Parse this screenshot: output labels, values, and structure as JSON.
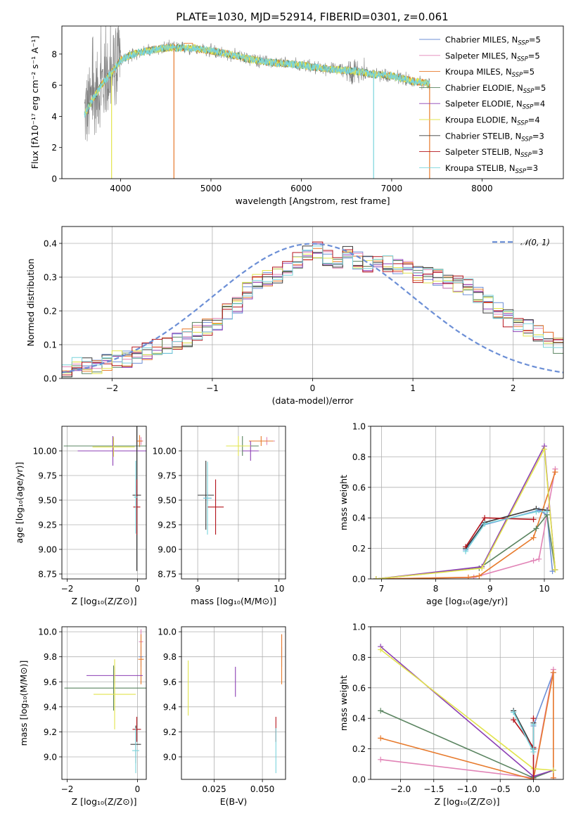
{
  "figure": {
    "title": "PLATE=1030, MJD=52914, FIBERID=0301, z=0.061"
  },
  "colors": {
    "Chabrier MILES": "#6c8fd6",
    "Salpeter MILES": "#e183b6",
    "Kroupa MILES": "#e77a2c",
    "Chabrier ELODIE": "#5a8460",
    "Salpeter ELODIE": "#8c3fb4",
    "Kroupa ELODIE": "#e2e44c",
    "Chabrier STELIB": "#3a3a3a",
    "Salpeter STELIB": "#b4151c",
    "Kroupa STELIB": "#79d4dc",
    "data": "#808080"
  },
  "chart_data": [
    {
      "id": "spectrum",
      "type": "line",
      "title": "PLATE=1030, MJD=52914, FIBERID=0301, z=0.061",
      "xlabel": "wavelength [Angstrom, rest frame]",
      "ylabel": "Flux [fλ10⁻¹⁷ erg cm⁻² s⁻¹ A⁻¹]",
      "xlim": [
        3350,
        8900
      ],
      "ylim": [
        0,
        9.8
      ],
      "xticks": [
        4000,
        5000,
        6000,
        7000,
        8000
      ],
      "yticks": [
        0,
        2,
        4,
        6,
        8
      ],
      "grid": false,
      "legend_position": "upper right",
      "data_trend": {
        "x": [
          3600,
          3700,
          3800,
          3900,
          4000,
          4100,
          4200,
          4300,
          4400,
          4500,
          4600,
          4700,
          4800,
          4900,
          5000,
          5200,
          5400,
          5600,
          5800,
          6000,
          6200,
          6400,
          6600,
          6800,
          7000,
          7200,
          7400
        ],
        "y": [
          4.1,
          5.2,
          6.1,
          6.8,
          7.6,
          7.9,
          8.1,
          8.2,
          8.3,
          8.4,
          8.4,
          8.4,
          8.4,
          8.3,
          8.2,
          8.0,
          7.7,
          7.5,
          7.4,
          7.3,
          7.1,
          7.0,
          6.9,
          6.7,
          6.6,
          6.3,
          6.1
        ]
      },
      "series": [
        {
          "label": "Chabrier MILES, N",
          "sub": "SSP",
          "suffix": "=5"
        },
        {
          "label": "Salpeter MILES, N",
          "sub": "SSP",
          "suffix": "=5"
        },
        {
          "label": "Kroupa MILES, N",
          "sub": "SSP",
          "suffix": "=5"
        },
        {
          "label": "Chabrier ELODIE, N",
          "sub": "SSP",
          "suffix": "=5"
        },
        {
          "label": "Salpeter ELODIE, N",
          "sub": "SSP",
          "suffix": "=4"
        },
        {
          "label": "Kroupa ELODIE, N",
          "sub": "SSP",
          "suffix": "=4"
        },
        {
          "label": "Chabrier STELIB, N",
          "sub": "SSP",
          "suffix": "=3"
        },
        {
          "label": "Salpeter STELIB, N",
          "sub": "SSP",
          "suffix": "=3"
        },
        {
          "label": "Kroupa STELIB, N",
          "sub": "SSP",
          "suffix": "=3"
        }
      ]
    },
    {
      "id": "residuals",
      "type": "line",
      "xlabel": "(data-model)/error",
      "ylabel": "Normed distribution",
      "xlim": [
        -2.5,
        2.5
      ],
      "ylim": [
        0,
        0.45
      ],
      "xticks": [
        -2,
        -1,
        0,
        1,
        2
      ],
      "yticks": [
        0.0,
        0.1,
        0.2,
        0.3,
        0.4
      ],
      "grid": true,
      "legend_position": "upper right",
      "legend_label": "𝒩(0, 1)",
      "bin_width": 0.1,
      "bin_start": -2.5,
      "base_hist": [
        0.03,
        0.035,
        0.04,
        0.04,
        0.045,
        0.055,
        0.06,
        0.07,
        0.08,
        0.09,
        0.1,
        0.11,
        0.12,
        0.14,
        0.15,
        0.17,
        0.2,
        0.22,
        0.26,
        0.29,
        0.3,
        0.31,
        0.33,
        0.35,
        0.37,
        0.38,
        0.36,
        0.35,
        0.37,
        0.35,
        0.34,
        0.35,
        0.34,
        0.33,
        0.33,
        0.31,
        0.31,
        0.3,
        0.29,
        0.28,
        0.27,
        0.25,
        0.22,
        0.2,
        0.18,
        0.16,
        0.15,
        0.13,
        0.11,
        0.1
      ]
    },
    {
      "id": "age-vs-Z",
      "type": "scatter",
      "xlabel": "Z [log₁₀(Z/Z⊙)]",
      "ylabel": "age  [log₁₀(age/yr)]",
      "xlim": [
        -2.15,
        0.25
      ],
      "ylim": [
        8.7,
        10.25
      ],
      "xticks": [
        -2,
        0
      ],
      "yticks": [
        8.75,
        9.0,
        9.25,
        9.5,
        9.75,
        10.0
      ],
      "grid": true,
      "points": [
        {
          "model": "Chabrier MILES",
          "x": -0.02,
          "y": 9.55,
          "xerr": 0.05,
          "yerr": 0.1
        },
        {
          "model": "Salpeter MILES",
          "x": 0.1,
          "y": 10.1,
          "xerr": 0.06,
          "yerr": 0.04
        },
        {
          "model": "Kroupa MILES",
          "x": 0.06,
          "y": 10.1,
          "xerr": 0.08,
          "yerr": 0.06
        },
        {
          "model": "Chabrier ELODIE",
          "x": -0.7,
          "y": 10.05,
          "xerr": 1.4,
          "yerr": 0.1
        },
        {
          "model": "Salpeter ELODIE",
          "x": -0.7,
          "y": 10.0,
          "xerr": 1.0,
          "yerr": 0.15
        },
        {
          "model": "Kroupa ELODIE",
          "x": -0.68,
          "y": 10.04,
          "xerr": 0.6,
          "yerr": 0.1
        },
        {
          "model": "Chabrier STELIB",
          "x": -0.02,
          "y": 9.55,
          "xerr": 0.12,
          "yerr": 0.77
        },
        {
          "model": "Salpeter STELIB",
          "x": -0.02,
          "y": 9.43,
          "xerr": 0.1,
          "yerr": 0.28
        },
        {
          "model": "Kroupa STELIB",
          "x": -0.05,
          "y": 9.53,
          "xerr": 0.05,
          "yerr": 0.37
        }
      ]
    },
    {
      "id": "age-vs-mass",
      "type": "scatter",
      "xlabel": "mass [log₁₀(M/M⊙)]",
      "xlim": [
        8.8,
        10.08
      ],
      "ylim": [
        8.7,
        10.25
      ],
      "xticks": [
        9,
        9.5,
        10
      ],
      "xticklabels": [
        "9",
        "",
        "10"
      ],
      "yticks": [
        8.75,
        9.0,
        9.25,
        9.5,
        9.75,
        10.0
      ],
      "grid": true,
      "points": [
        {
          "model": "Chabrier MILES",
          "x": 9.12,
          "y": 9.52,
          "xerr": 0.05,
          "yerr": 0.06
        },
        {
          "model": "Salpeter MILES",
          "x": 9.85,
          "y": 10.1,
          "xerr": 0.1,
          "yerr": 0.04
        },
        {
          "model": "Kroupa MILES",
          "x": 9.78,
          "y": 10.1,
          "xerr": 0.15,
          "yerr": 0.05
        },
        {
          "model": "Chabrier ELODIE",
          "x": 9.55,
          "y": 10.05,
          "xerr": 0.2,
          "yerr": 0.1
        },
        {
          "model": "Salpeter ELODIE",
          "x": 9.65,
          "y": 10.0,
          "xerr": 0.1,
          "yerr": 0.1
        },
        {
          "model": "Kroupa ELODIE",
          "x": 9.5,
          "y": 10.05,
          "xerr": 0.15,
          "yerr": 0.1
        },
        {
          "model": "Chabrier STELIB",
          "x": 9.1,
          "y": 9.55,
          "xerr": 0.1,
          "yerr": 0.35
        },
        {
          "model": "Salpeter STELIB",
          "x": 9.22,
          "y": 9.43,
          "xerr": 0.1,
          "yerr": 0.28
        },
        {
          "model": "Kroupa STELIB",
          "x": 9.12,
          "y": 9.52,
          "xerr": 0.05,
          "yerr": 0.37
        }
      ]
    },
    {
      "id": "mass-weight-vs-age",
      "type": "line",
      "xlabel": "age  [log₁₀(age/yr)]",
      "ylabel": "mass weight",
      "xlim": [
        6.8,
        10.35
      ],
      "ylim": [
        0,
        1.0
      ],
      "xticks": [
        7,
        8,
        9,
        10
      ],
      "yticks": [
        0.0,
        0.2,
        0.4,
        0.6,
        0.8,
        1.0
      ],
      "grid": true,
      "series": [
        {
          "model": "Chabrier MILES",
          "x": [
            8.55,
            8.85,
            9.9,
            10.05,
            10.15
          ],
          "y": [
            0.19,
            0.35,
            0.45,
            0.42,
            0.05
          ]
        },
        {
          "model": "Salpeter MILES",
          "x": [
            6.9,
            8.7,
            9.8,
            9.9,
            10.2
          ],
          "y": [
            0.0,
            0.01,
            0.12,
            0.13,
            0.72
          ]
        },
        {
          "model": "Kroupa MILES",
          "x": [
            6.9,
            8.6,
            8.8,
            9.8,
            10.2
          ],
          "y": [
            0.0,
            0.01,
            0.02,
            0.27,
            0.7
          ]
        },
        {
          "model": "Chabrier ELODIE",
          "x": [
            6.9,
            8.8,
            9.85,
            10.05,
            10.2
          ],
          "y": [
            0.0,
            0.07,
            0.33,
            0.42,
            0.06
          ]
        },
        {
          "model": "Salpeter ELODIE",
          "x": [
            6.9,
            8.85,
            10.0,
            10.2
          ],
          "y": [
            0.0,
            0.08,
            0.87,
            0.06
          ]
        },
        {
          "model": "Kroupa ELODIE",
          "x": [
            6.9,
            8.85,
            10.0,
            10.2
          ],
          "y": [
            0.0,
            0.07,
            0.85,
            0.06
          ]
        },
        {
          "model": "Chabrier STELIB",
          "x": [
            8.55,
            8.9,
            9.85,
            10.05
          ],
          "y": [
            0.2,
            0.37,
            0.46,
            0.45
          ]
        },
        {
          "model": "Salpeter STELIB",
          "x": [
            8.55,
            8.9,
            9.8
          ],
          "y": [
            0.21,
            0.4,
            0.39
          ]
        },
        {
          "model": "Kroupa STELIB",
          "x": [
            8.55,
            8.9,
            9.85,
            10.05
          ],
          "y": [
            0.18,
            0.36,
            0.44,
            0.44
          ]
        }
      ]
    },
    {
      "id": "mass-vs-Z",
      "type": "scatter",
      "xlabel": "Z [log₁₀(Z/Z⊙)]",
      "ylabel": "mass [log₁₀(M/M⊙)]",
      "xlim": [
        -2.15,
        0.25
      ],
      "ylim": [
        8.82,
        10.04
      ],
      "xticks": [
        -2,
        0
      ],
      "yticks": [
        9.0,
        9.2,
        9.4,
        9.6,
        9.8,
        10.0
      ],
      "grid": true,
      "points": [
        {
          "model": "Chabrier MILES",
          "x": 0.1,
          "y": 9.8,
          "xerr": 0.06,
          "yerr": 0.08
        },
        {
          "model": "Salpeter MILES",
          "x": 0.1,
          "y": 9.92,
          "xerr": 0.06,
          "yerr": 0.1
        },
        {
          "model": "Kroupa MILES",
          "x": 0.1,
          "y": 9.78,
          "xerr": 0.08,
          "yerr": 0.2
        },
        {
          "model": "Chabrier ELODIE",
          "x": -0.68,
          "y": 9.55,
          "xerr": 1.4,
          "yerr": 0.18
        },
        {
          "model": "Salpeter ELODIE",
          "x": -0.65,
          "y": 9.65,
          "xerr": 0.8,
          "yerr": 0.07
        },
        {
          "model": "Kroupa ELODIE",
          "x": -0.65,
          "y": 9.5,
          "xerr": 0.6,
          "yerr": 0.28
        },
        {
          "model": "Chabrier STELIB",
          "x": -0.05,
          "y": 9.1,
          "xerr": 0.15,
          "yerr": 0.15
        },
        {
          "model": "Salpeter STELIB",
          "x": -0.02,
          "y": 9.22,
          "xerr": 0.12,
          "yerr": 0.1
        },
        {
          "model": "Kroupa STELIB",
          "x": -0.05,
          "y": 9.05,
          "xerr": 0.1,
          "yerr": 0.18
        }
      ]
    },
    {
      "id": "mass-vs-EBV",
      "type": "scatter",
      "xlabel": "E(B-V)",
      "xlim": [
        0.008,
        0.062
      ],
      "ylim": [
        8.82,
        10.04
      ],
      "xticks": [
        0.025,
        0.05
      ],
      "xticklabels": [
        "0.025",
        "0.050"
      ],
      "yticks": [
        9.0,
        9.2,
        9.4,
        9.6,
        9.8,
        10.0
      ],
      "grid": true,
      "points": [
        {
          "model": "Chabrier MILES",
          "x": 0.06,
          "y": 9.8,
          "xerr": 0.0,
          "yerr": 0.08
        },
        {
          "model": "Salpeter MILES",
          "x": 0.06,
          "y": 9.88,
          "xerr": 0.0,
          "yerr": 0.1
        },
        {
          "model": "Kroupa MILES",
          "x": 0.06,
          "y": 9.78,
          "xerr": 0.0,
          "yerr": 0.2
        },
        {
          "model": "Salpeter ELODIE",
          "x": 0.036,
          "y": 9.6,
          "xerr": 0.0,
          "yerr": 0.12
        },
        {
          "model": "Kroupa ELODIE",
          "x": 0.0115,
          "y": 9.55,
          "xerr": 0.0,
          "yerr": 0.22
        },
        {
          "model": "Salpeter STELIB",
          "x": 0.057,
          "y": 9.22,
          "xerr": 0.0,
          "yerr": 0.1
        },
        {
          "model": "Kroupa STELIB",
          "x": 0.057,
          "y": 9.05,
          "xerr": 0.0,
          "yerr": 0.18
        }
      ]
    },
    {
      "id": "mass-weight-vs-Z",
      "type": "line",
      "xlabel": "Z [log₁₀(Z/Z⊙)]",
      "ylabel": "mass weight",
      "xlim": [
        -2.45,
        0.45
      ],
      "ylim": [
        0,
        1.0
      ],
      "xticks": [
        -2.0,
        -1.5,
        -1.0,
        -0.5,
        0.0
      ],
      "xticklabels": [
        "−2.0",
        "−1.5",
        "−1.0",
        "−0.5",
        "0.0"
      ],
      "yticks": [
        0.0,
        0.2,
        0.4,
        0.6,
        0.8,
        1.0
      ],
      "grid": true,
      "series": [
        {
          "model": "Chabrier MILES",
          "x": [
            -0.3,
            0.0,
            0.0,
            0.3
          ],
          "y": [
            0.44,
            0.2,
            0.35,
            0.7
          ]
        },
        {
          "model": "Salpeter MILES",
          "x": [
            -2.3,
            0.0,
            0.3,
            0.3
          ],
          "y": [
            0.13,
            0.01,
            0.72,
            0.01
          ]
        },
        {
          "model": "Kroupa MILES",
          "x": [
            -2.3,
            0.0,
            0.3,
            0.3
          ],
          "y": [
            0.27,
            0.0,
            0.7,
            0.01
          ]
        },
        {
          "model": "Chabrier ELODIE",
          "x": [
            -2.3,
            0.0,
            0.3
          ],
          "y": [
            0.45,
            0.01,
            0.06
          ]
        },
        {
          "model": "Salpeter ELODIE",
          "x": [
            -2.3,
            0.0,
            0.3
          ],
          "y": [
            0.87,
            0.02,
            0.06
          ]
        },
        {
          "model": "Kroupa ELODIE",
          "x": [
            -2.3,
            0.0,
            0.3
          ],
          "y": [
            0.85,
            0.07,
            0.06
          ]
        },
        {
          "model": "Chabrier STELIB",
          "x": [
            -0.3,
            0.0,
            0.0
          ],
          "y": [
            0.45,
            0.2,
            0.37
          ]
        },
        {
          "model": "Salpeter STELIB",
          "x": [
            -0.3,
            0.0,
            0.0,
            0.0
          ],
          "y": [
            0.39,
            0.21,
            0.4,
            0.0
          ]
        },
        {
          "model": "Kroupa STELIB",
          "x": [
            -0.3,
            0.0,
            0.0
          ],
          "y": [
            0.44,
            0.18,
            0.36
          ]
        }
      ]
    }
  ]
}
